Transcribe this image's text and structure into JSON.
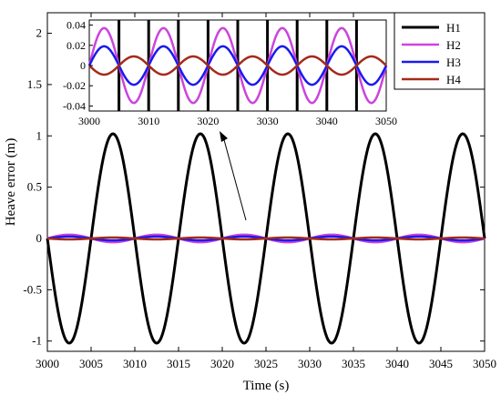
{
  "chart_data": {
    "type": "line",
    "xlabel": "Time (s)",
    "ylabel": "Heave error (m)",
    "xlim": [
      3000,
      3050
    ],
    "ylim": [
      -1.1,
      2.2
    ],
    "xticks": [
      "3000",
      "3005",
      "3010",
      "3015",
      "3020",
      "3025",
      "3030",
      "3035",
      "3040",
      "3045",
      "3050"
    ],
    "yticks": [
      "-1",
      "-0.5",
      "0",
      "0.5",
      "1",
      "1.5",
      "2"
    ],
    "grid": false,
    "legend_position": "top-right",
    "period_s": 10,
    "series": [
      {
        "name": "H1",
        "color": "#000000",
        "amplitude": 1.02,
        "phase_deg": 180,
        "peak_times": [
          3007,
          3017,
          3027,
          3037,
          3047
        ]
      },
      {
        "name": "H2",
        "color": "#cc44dd",
        "amplitude": 0.037,
        "phase_deg": 0
      },
      {
        "name": "H3",
        "color": "#1a1aee",
        "amplitude": 0.019,
        "phase_deg": 0
      },
      {
        "name": "H4",
        "color": "#a52a1a",
        "amplitude": 0.009,
        "phase_deg": 180
      }
    ],
    "inset": {
      "xlim": [
        3000,
        3050
      ],
      "ylim": [
        -0.045,
        0.045
      ],
      "xticks": [
        "3000",
        "3010",
        "3020",
        "3030",
        "3040",
        "3050"
      ],
      "yticks": [
        "0.04",
        "0.02",
        "0",
        "-0.02",
        "-0.04"
      ],
      "annotation": "arrow from zoomed region at zero line to inset"
    }
  }
}
